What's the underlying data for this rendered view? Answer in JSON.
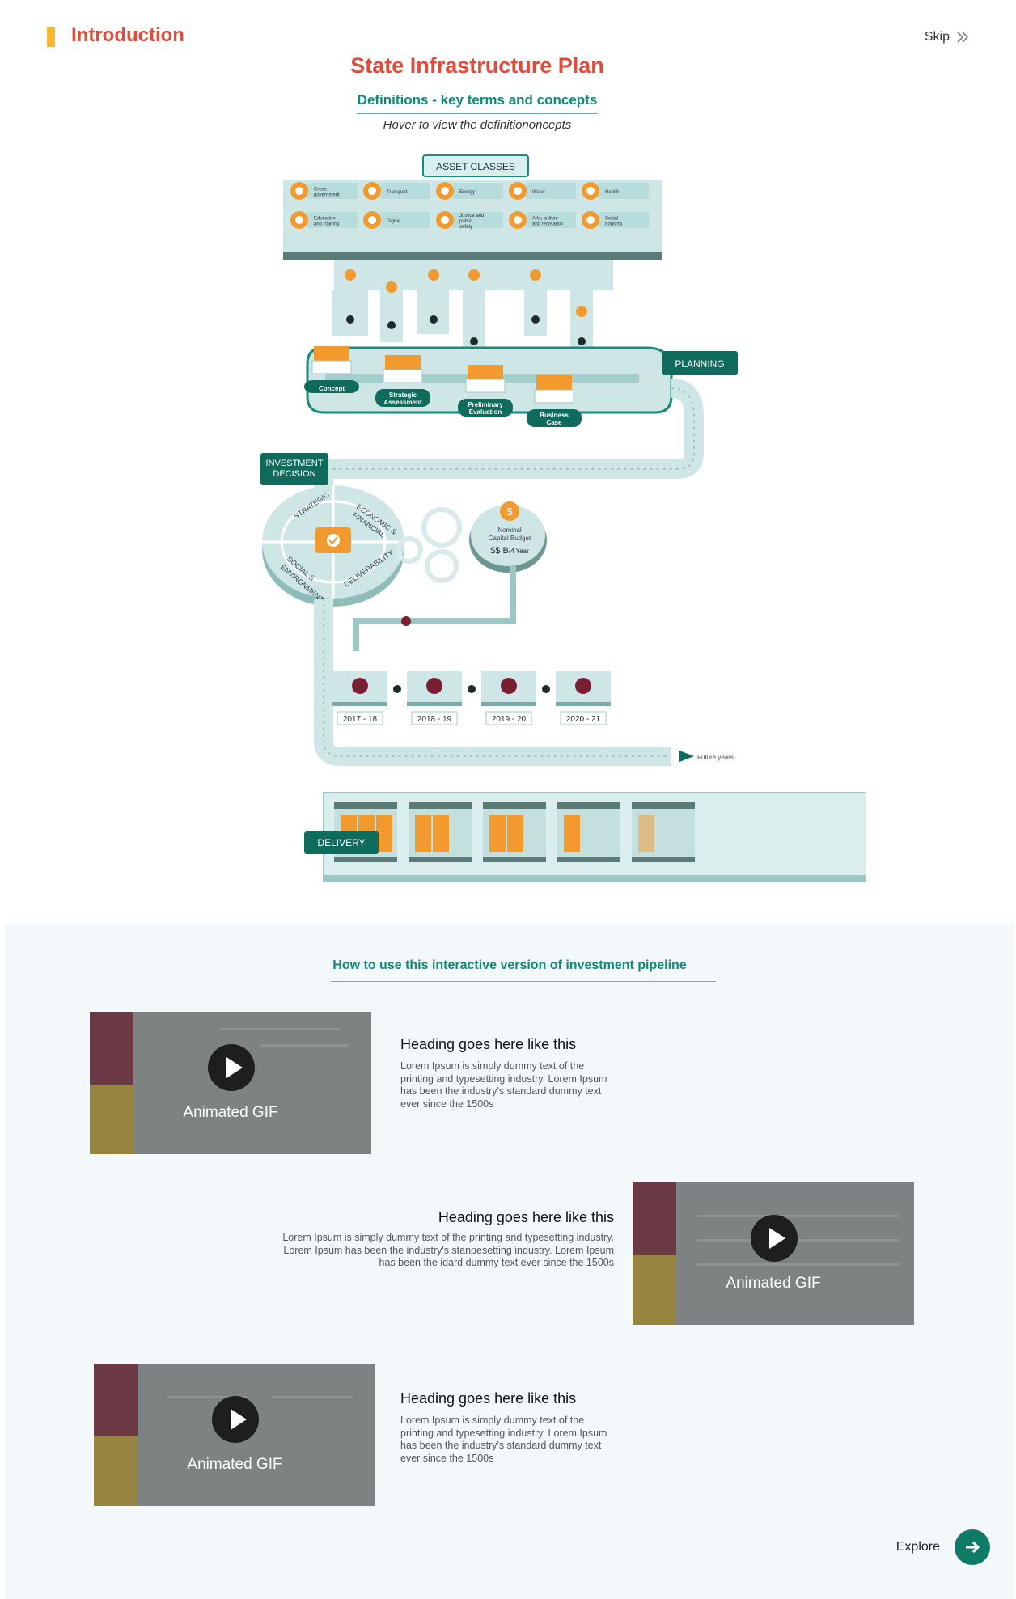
{
  "header": {
    "section": "Introduction",
    "skip_label": "Skip",
    "title": "State Infrastructure Plan",
    "subtitle": "Definitions - key terms and concepts",
    "hint": "Hover to view the definitiononcepts"
  },
  "diagram": {
    "asset_classes_label": "ASSET CLASSES",
    "asset_classes": [
      [
        "Cross",
        "government"
      ],
      [
        "Transport"
      ],
      [
        "Energy"
      ],
      [
        "Water"
      ],
      [
        "Health"
      ],
      [
        "Education",
        "and training"
      ],
      [
        "Digital"
      ],
      [
        "Justice and",
        "public",
        "safety"
      ],
      [
        "Arts, culture",
        "and recreation"
      ],
      [
        "Social",
        "housing"
      ]
    ],
    "planning_label": "PLANNING",
    "stages": [
      [
        "Concept"
      ],
      [
        "Strategic",
        "Assessment"
      ],
      [
        "Preliminary",
        "Evaluation"
      ],
      [
        "Business",
        "Case"
      ]
    ],
    "investment_decision": [
      "INVESTMENT",
      "DECISION"
    ],
    "wheel_segments": [
      "STRATEGIC",
      "ECONOMIC &",
      "FINANCIAL",
      "SOCIAL &",
      "ENVIRONMENT",
      "DELIVERABILITY"
    ],
    "budget": {
      "line1": "Nominal",
      "line2": "Capital Budget",
      "amount": "$$ B",
      "per": "/4 Year",
      "symbol": "$"
    },
    "years": [
      "2017 - 18",
      "2018 - 19",
      "2019 - 20",
      "2020 - 21"
    ],
    "future_label": "Future years",
    "delivery_label": "DELIVERY",
    "colors": {
      "teal_dark": "#0f6b5c",
      "teal_light": "#cfe8e8",
      "orange": "#f29a2e",
      "maroon": "#7a1f33"
    }
  },
  "howto": {
    "title": "How to use this interactive version of investment pipeline",
    "gif_label": "Animated GIF",
    "cards": [
      {
        "heading": "Heading goes here like this",
        "text": [
          "Lorem Ipsum is simply dummy text of the",
          "printing and typesetting industry. Lorem Ipsum",
          "has been the industry's standard dummy text",
          "ever since the 1500s"
        ]
      },
      {
        "heading": "Heading goes here like this",
        "text": [
          "Lorem Ipsum is simply dummy text of the printing and typesetting industry.",
          "Lorem Ipsum has been the industry's stanpesetting industry. Lorem Ipsum",
          "has been the idard dummy text ever since the 1500s"
        ]
      },
      {
        "heading": "Heading goes here like this",
        "text": [
          "Lorem Ipsum is simply dummy text of the",
          "printing and typesetting industry. Lorem Ipsum",
          "has been the industry's standard dummy text",
          "ever since the 1500s"
        ]
      }
    ],
    "explore_label": "Explore"
  }
}
